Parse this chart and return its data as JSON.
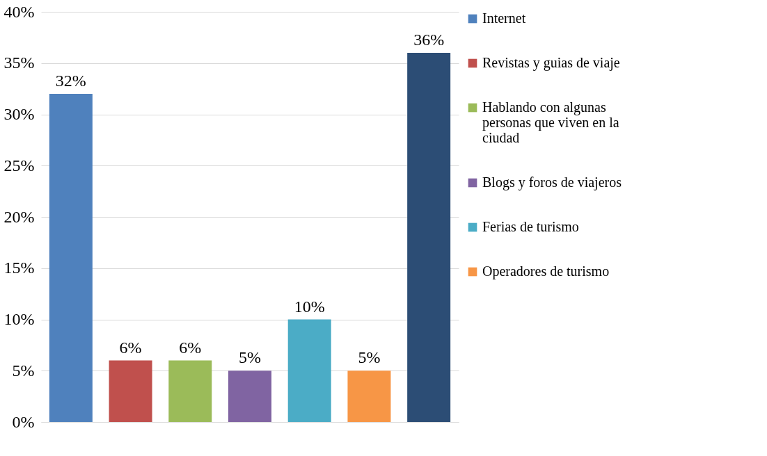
{
  "chart_data": {
    "type": "bar",
    "categories": [
      null,
      null,
      null,
      null,
      null,
      null,
      null
    ],
    "series": [
      {
        "name": "Internet",
        "color": "#4f81bd",
        "values": [
          32,
          null,
          null,
          null,
          null,
          null,
          null
        ],
        "value_labels": [
          "32%",
          null,
          null,
          null,
          null,
          null,
          null
        ]
      },
      {
        "name": "Revistas y guias de viaje",
        "color": "#c0504d",
        "values": [
          null,
          6,
          null,
          null,
          null,
          null,
          null
        ],
        "value_labels": [
          null,
          "6%",
          null,
          null,
          null,
          null,
          null
        ]
      },
      {
        "name": "Hablando con algunas personas que viven en la ciudad",
        "color": "#9bbb59",
        "values": [
          null,
          null,
          6,
          null,
          null,
          null,
          null
        ],
        "value_labels": [
          null,
          null,
          "6%",
          null,
          null,
          null,
          null
        ]
      },
      {
        "name": "Blogs y foros de viajeros",
        "color": "#8064a2",
        "values": [
          null,
          null,
          null,
          5,
          null,
          null,
          null
        ],
        "value_labels": [
          null,
          null,
          null,
          "5%",
          null,
          null,
          null
        ]
      },
      {
        "name": "Ferias de turismo",
        "color": "#4bacc6",
        "values": [
          null,
          null,
          null,
          null,
          10,
          null,
          null
        ],
        "value_labels": [
          null,
          null,
          null,
          null,
          "10%",
          null,
          null
        ]
      },
      {
        "name": "Operadores de turismo",
        "color": "#f79646",
        "values": [
          null,
          null,
          null,
          null,
          null,
          5,
          null
        ],
        "value_labels": [
          null,
          null,
          null,
          null,
          null,
          "5%",
          null
        ]
      },
      {
        "color": "#2c4d75",
        "values": [
          null,
          null,
          null,
          null,
          null,
          null,
          36
        ],
        "value_labels": [
          null,
          null,
          null,
          null,
          null,
          null,
          "36%"
        ]
      }
    ],
    "ylim": [
      0,
      40
    ],
    "yticks": [
      {
        "value": 0,
        "label": "0%"
      },
      {
        "value": 5,
        "label": "5%"
      },
      {
        "value": 10,
        "label": "10%"
      },
      {
        "value": 15,
        "label": "15%"
      },
      {
        "value": 20,
        "label": "20%"
      },
      {
        "value": 25,
        "label": "25%"
      },
      {
        "value": 30,
        "label": "30%"
      },
      {
        "value": 35,
        "label": "35%"
      },
      {
        "value": 40,
        "label": "40%"
      }
    ],
    "grid": "y",
    "legend": "right"
  }
}
